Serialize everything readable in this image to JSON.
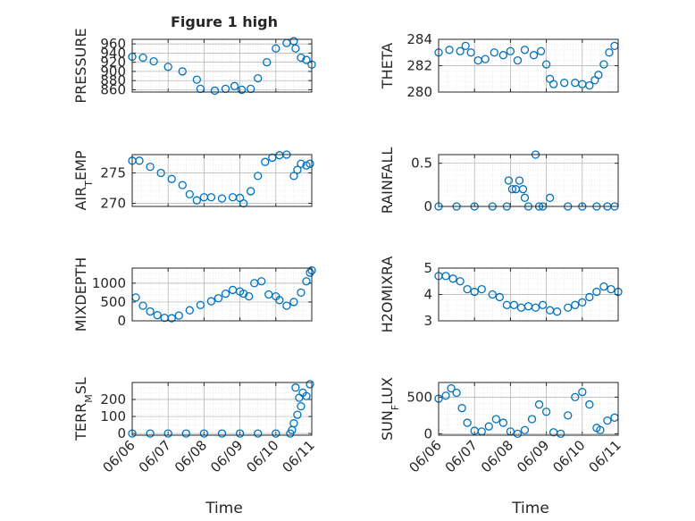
{
  "figure": {
    "title": "Figure 1 high",
    "xlabel": "Time"
  },
  "colors": {
    "marker": "#0072bd",
    "axis": "#262626",
    "grid": "#b0b0b0",
    "background": "#ffffff"
  },
  "x_ticks": [
    "06/06",
    "06/07",
    "06/08",
    "06/09",
    "06/10",
    "06/11"
  ],
  "chart_data": [
    {
      "type": "scatter",
      "id": "pressure",
      "ylabel": "PRESSURE",
      "ylabel_sub": "",
      "title": "Figure 1 high",
      "xlabel": "",
      "ylim": [
        855,
        970
      ],
      "yticks": [
        860,
        880,
        900,
        920,
        940,
        960
      ],
      "ytick_labels": [
        "860",
        "880",
        "900",
        "920",
        "940",
        "960"
      ],
      "grid": true,
      "marker": "circle",
      "x": [
        0.0,
        0.3,
        0.6,
        1.0,
        1.4,
        1.8,
        1.9,
        2.3,
        2.6,
        2.85,
        3.05,
        3.3,
        3.5,
        3.75,
        4.0,
        4.3,
        4.5,
        4.55,
        4.7,
        4.85,
        5.0
      ],
      "y": [
        932,
        930,
        922,
        910,
        900,
        882,
        862,
        858,
        862,
        868,
        860,
        862,
        885,
        920,
        950,
        962,
        966,
        950,
        930,
        925,
        915
      ]
    },
    {
      "type": "scatter",
      "id": "theta",
      "ylabel": "THETA",
      "ylabel_sub": "",
      "title": "",
      "xlabel": "",
      "ylim": [
        280,
        284
      ],
      "yticks": [
        280,
        282,
        284
      ],
      "ytick_labels": [
        "280",
        "282",
        "284"
      ],
      "grid": true,
      "marker": "circle",
      "x": [
        0.0,
        0.3,
        0.6,
        0.75,
        0.9,
        1.1,
        1.3,
        1.55,
        1.8,
        2.0,
        2.2,
        2.4,
        2.65,
        2.85,
        3.0,
        3.1,
        3.2,
        3.5,
        3.8,
        4.0,
        4.2,
        4.35,
        4.45,
        4.6,
        4.75,
        4.9
      ],
      "y": [
        283,
        283.2,
        283.1,
        283.5,
        283,
        282.4,
        282.5,
        283,
        282.8,
        283.1,
        282.4,
        283.2,
        282.8,
        283.1,
        282.1,
        281.0,
        280.6,
        280.7,
        280.7,
        280.6,
        280.5,
        280.9,
        281.3,
        282.1,
        283.0,
        283.5
      ]
    },
    {
      "type": "scatter",
      "id": "air_temp",
      "ylabel": "AIR",
      "ylabel_sub": "T",
      "ylabel_suffix": "EMP",
      "title": "",
      "xlabel": "",
      "ylim": [
        269.5,
        278
      ],
      "yticks": [
        270,
        275
      ],
      "ytick_labels": [
        "270",
        "275"
      ],
      "grid": true,
      "marker": "circle",
      "x": [
        0.0,
        0.2,
        0.5,
        0.8,
        1.1,
        1.4,
        1.6,
        1.8,
        2.0,
        2.2,
        2.5,
        2.8,
        3.0,
        3.1,
        3.3,
        3.5,
        3.7,
        3.9,
        4.1,
        4.3,
        4.5,
        4.6,
        4.7,
        4.85,
        4.95
      ],
      "y": [
        277,
        277,
        276,
        275,
        274,
        273,
        271.5,
        270.5,
        271,
        271,
        270.8,
        271,
        270.9,
        270,
        272,
        274.5,
        276.8,
        277.5,
        277.9,
        278,
        274.5,
        275.5,
        276.5,
        276.2,
        276.5
      ]
    },
    {
      "type": "scatter",
      "id": "rainfall",
      "ylabel": "RAINFALL",
      "ylabel_sub": "",
      "title": "",
      "xlabel": "",
      "ylim": [
        0,
        0.6
      ],
      "yticks": [
        0,
        0.5
      ],
      "ytick_labels": [
        "0",
        "0.5"
      ],
      "grid": true,
      "marker": "circle",
      "x": [
        0.0,
        0.5,
        1.0,
        1.5,
        1.9,
        1.95,
        2.05,
        2.15,
        2.25,
        2.35,
        2.4,
        2.5,
        2.7,
        2.8,
        2.9,
        3.1,
        3.6,
        4.0,
        4.4,
        4.7,
        4.9
      ],
      "y": [
        0,
        0,
        0,
        0,
        0,
        0.3,
        0.2,
        0.2,
        0.3,
        0.2,
        0.1,
        0,
        0.6,
        0,
        0,
        0.1,
        0,
        0,
        0,
        0,
        0
      ]
    },
    {
      "type": "scatter",
      "id": "mixdepth",
      "ylabel": "MIXDEPTH",
      "ylabel_sub": "",
      "title": "",
      "xlabel": "",
      "ylim": [
        0,
        1400
      ],
      "yticks": [
        0,
        500,
        1000
      ],
      "ytick_labels": [
        "0",
        "500",
        "1000"
      ],
      "grid": true,
      "marker": "circle",
      "x": [
        0.1,
        0.3,
        0.5,
        0.7,
        0.9,
        1.1,
        1.3,
        1.6,
        1.9,
        2.2,
        2.4,
        2.6,
        2.8,
        3.0,
        3.1,
        3.25,
        3.4,
        3.6,
        3.8,
        4.0,
        4.1,
        4.3,
        4.5,
        4.7,
        4.85,
        4.95,
        5.0
      ],
      "y": [
        620,
        400,
        250,
        150,
        80,
        70,
        140,
        280,
        420,
        520,
        600,
        720,
        820,
        780,
        720,
        650,
        1000,
        1050,
        700,
        650,
        550,
        400,
        500,
        750,
        1050,
        1280,
        1340
      ]
    },
    {
      "type": "scatter",
      "id": "h2omixra",
      "ylabel": "H2OMIXRA",
      "ylabel_sub": "",
      "title": "",
      "xlabel": "",
      "ylim": [
        3,
        5
      ],
      "yticks": [
        3,
        4,
        5
      ],
      "ytick_labels": [
        "3",
        "4",
        "5"
      ],
      "grid": true,
      "marker": "circle",
      "x": [
        0.0,
        0.2,
        0.4,
        0.6,
        0.8,
        1.0,
        1.2,
        1.5,
        1.7,
        1.9,
        2.1,
        2.3,
        2.5,
        2.7,
        2.9,
        3.1,
        3.3,
        3.6,
        3.8,
        4.0,
        4.2,
        4.4,
        4.6,
        4.8,
        5.0
      ],
      "y": [
        4.7,
        4.7,
        4.6,
        4.5,
        4.2,
        4.1,
        4.2,
        4.0,
        3.9,
        3.6,
        3.6,
        3.5,
        3.55,
        3.5,
        3.6,
        3.4,
        3.35,
        3.5,
        3.6,
        3.7,
        3.9,
        4.1,
        4.3,
        4.2,
        4.1
      ]
    },
    {
      "type": "scatter",
      "id": "terr_msl",
      "ylabel": "TERR",
      "ylabel_sub": "M",
      "ylabel_suffix": "SL",
      "title": "",
      "xlabel": "Time",
      "ylim": [
        -10,
        300
      ],
      "yticks": [
        0,
        100,
        200
      ],
      "ytick_labels": [
        "0",
        "100",
        "200"
      ],
      "grid": true,
      "marker": "circle",
      "x": [
        0.0,
        0.5,
        1.0,
        1.5,
        2.0,
        2.5,
        3.0,
        3.5,
        4.0,
        4.4,
        4.45,
        4.5,
        4.55,
        4.6,
        4.65,
        4.7,
        4.75,
        4.85,
        4.95
      ],
      "y": [
        0,
        0,
        0,
        0,
        0,
        0,
        0,
        0,
        0,
        0,
        20,
        60,
        270,
        110,
        210,
        160,
        240,
        220,
        290
      ]
    },
    {
      "type": "scatter",
      "id": "sun_flux",
      "ylabel": "SUN",
      "ylabel_sub": "F",
      "ylabel_suffix": "LUX",
      "title": "",
      "xlabel": "Time",
      "ylim": [
        -20,
        700
      ],
      "yticks": [
        0,
        500
      ],
      "ytick_labels": [
        "0",
        "500"
      ],
      "grid": true,
      "marker": "circle",
      "x": [
        0.0,
        0.2,
        0.35,
        0.5,
        0.65,
        0.8,
        1.0,
        1.2,
        1.4,
        1.6,
        1.8,
        2.0,
        2.2,
        2.4,
        2.6,
        2.8,
        3.0,
        3.2,
        3.4,
        3.6,
        3.8,
        4.0,
        4.2,
        4.4,
        4.5,
        4.7,
        4.9
      ],
      "y": [
        480,
        520,
        620,
        560,
        350,
        150,
        40,
        30,
        100,
        200,
        150,
        30,
        0,
        50,
        200,
        400,
        300,
        20,
        0,
        250,
        500,
        570,
        400,
        80,
        50,
        180,
        220
      ]
    }
  ]
}
